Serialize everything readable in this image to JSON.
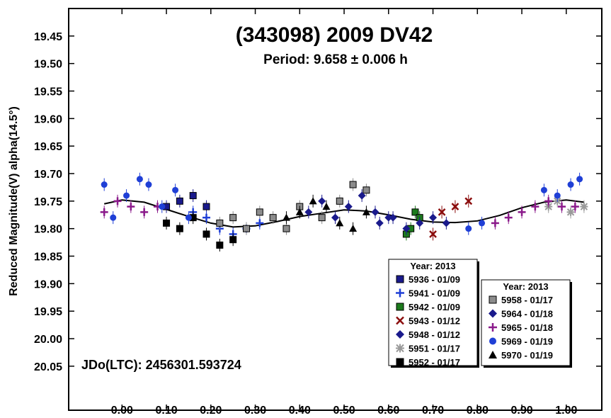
{
  "chart_data": {
    "type": "scatter",
    "title": "(343098) 2009 DV42",
    "subtitle": "Period: 9.658 ± 0.006 h",
    "ylabel": "Reduced Magnitude(V) alpha(14.5°)",
    "xlabel": "",
    "xlim": [
      -0.12,
      1.08
    ],
    "ylim": [
      19.4,
      20.13
    ],
    "y_inverted": true,
    "x_ticks": [
      "0.00",
      "0.10",
      "0.20",
      "0.30",
      "0.40",
      "0.50",
      "0.60",
      "0.70",
      "0.80",
      "0.90",
      "1.00"
    ],
    "y_ticks": [
      "19.45",
      "19.50",
      "19.55",
      "19.60",
      "19.65",
      "19.70",
      "19.75",
      "19.80",
      "19.85",
      "19.90",
      "19.95",
      "20.00",
      "20.05"
    ],
    "annotation": "JDo(LTC): 2456301.593724",
    "grid": false,
    "legend_placement": "bottom-right",
    "legends": [
      {
        "title": "Year: 2013",
        "entries": [
          {
            "label": "5936 - 01/09",
            "marker": "square",
            "color": "#1a1a8c"
          },
          {
            "label": "5941 - 01/09",
            "marker": "plus",
            "color": "#1f3fd6"
          },
          {
            "label": "5942 - 01/09",
            "marker": "square",
            "color": "#1c7a1c"
          },
          {
            "label": "5943 - 01/12",
            "marker": "x",
            "color": "#8b0d0d"
          },
          {
            "label": "5948 - 01/12",
            "marker": "diamond",
            "color": "#1a1a8c"
          },
          {
            "label": "5951 - 01/17",
            "marker": "asterisk",
            "color": "#9a9a9a"
          },
          {
            "label": "5952 - 01/17",
            "marker": "square",
            "color": "#000000"
          }
        ]
      },
      {
        "title": "Year: 2013",
        "entries": [
          {
            "label": "5958 - 01/17",
            "marker": "square",
            "color": "#8c8c8c"
          },
          {
            "label": "5964 - 01/18",
            "marker": "diamond",
            "color": "#1a1a8c"
          },
          {
            "label": "5965 - 01/18",
            "marker": "plus",
            "color": "#8b1a8b"
          },
          {
            "label": "5969 - 01/19",
            "marker": "circle",
            "color": "#1f3fd6"
          },
          {
            "label": "5970 - 01/19",
            "marker": "triangle",
            "color": "#000000"
          }
        ]
      }
    ],
    "fit_curve": {
      "x": [
        -0.04,
        0.0,
        0.05,
        0.1,
        0.15,
        0.2,
        0.25,
        0.3,
        0.35,
        0.4,
        0.45,
        0.5,
        0.55,
        0.6,
        0.65,
        0.7,
        0.75,
        0.8,
        0.85,
        0.9,
        0.95,
        1.0,
        1.04
      ],
      "y": [
        19.755,
        19.748,
        19.752,
        19.765,
        19.778,
        19.79,
        19.797,
        19.795,
        19.787,
        19.778,
        19.772,
        19.766,
        19.768,
        19.775,
        19.783,
        19.788,
        19.789,
        19.786,
        19.776,
        19.762,
        19.752,
        19.748,
        19.752
      ]
    },
    "series": [
      {
        "name": "5936 - 01/09",
        "x": [
          0.1,
          0.13,
          0.16,
          0.19
        ],
        "y": [
          19.76,
          19.75,
          19.74,
          19.76
        ]
      },
      {
        "name": "5941 - 01/09",
        "x": [
          0.16,
          0.19,
          0.22,
          0.25,
          0.28,
          0.31
        ],
        "y": [
          19.77,
          19.78,
          19.8,
          19.81,
          19.8,
          19.79
        ]
      },
      {
        "name": "5942 - 01/09",
        "x": [
          0.64,
          0.65,
          0.66,
          0.67
        ],
        "y": [
          19.81,
          19.8,
          19.77,
          19.78
        ]
      },
      {
        "name": "5943 - 01/12",
        "x": [
          0.7,
          0.72,
          0.75,
          0.78
        ],
        "y": [
          19.81,
          19.77,
          19.76,
          19.75
        ]
      },
      {
        "name": "5948 - 01/12",
        "x": [
          0.58,
          0.61,
          0.64,
          0.67,
          0.7,
          0.73
        ],
        "y": [
          19.79,
          19.78,
          19.8,
          19.79,
          19.78,
          19.79
        ]
      },
      {
        "name": "5951 - 01/17",
        "x": [
          0.96,
          0.98,
          1.01,
          1.04
        ],
        "y": [
          19.76,
          19.75,
          19.77,
          19.76
        ]
      },
      {
        "name": "5952 - 01/17",
        "x": [
          0.1,
          0.13,
          0.16,
          0.19,
          0.22,
          0.25
        ],
        "y": [
          19.79,
          19.8,
          19.78,
          19.81,
          19.83,
          19.82
        ]
      },
      {
        "name": "5958 - 01/17",
        "x": [
          0.22,
          0.25,
          0.28,
          0.31,
          0.34,
          0.37,
          0.4,
          0.45,
          0.49,
          0.52,
          0.55
        ],
        "y": [
          19.79,
          19.78,
          19.8,
          19.77,
          19.78,
          19.8,
          19.76,
          19.78,
          19.75,
          19.72,
          19.73
        ]
      },
      {
        "name": "5964 - 01/18",
        "x": [
          0.42,
          0.45,
          0.48,
          0.51,
          0.54,
          0.57,
          0.6
        ],
        "y": [
          19.77,
          19.75,
          19.78,
          19.76,
          19.74,
          19.77,
          19.78
        ]
      },
      {
        "name": "5965 - 01/18",
        "x": [
          -0.04,
          -0.01,
          0.02,
          0.05,
          0.08,
          0.84,
          0.87,
          0.9,
          0.93,
          0.96,
          0.99,
          1.02
        ],
        "y": [
          19.77,
          19.75,
          19.76,
          19.77,
          19.76,
          19.79,
          19.78,
          19.77,
          19.76,
          19.75,
          19.76,
          19.76
        ]
      },
      {
        "name": "5969 - 01/19",
        "x": [
          -0.04,
          -0.02,
          0.01,
          0.04,
          0.06,
          0.09,
          0.12,
          0.15,
          0.78,
          0.81,
          0.95,
          0.98,
          1.01,
          1.03
        ],
        "y": [
          19.72,
          19.78,
          19.74,
          19.71,
          19.72,
          19.76,
          19.73,
          19.78,
          19.8,
          19.79,
          19.73,
          19.74,
          19.72,
          19.71
        ]
      },
      {
        "name": "5970 - 01/19",
        "x": [
          0.37,
          0.4,
          0.43,
          0.46,
          0.49,
          0.52,
          0.55
        ],
        "y": [
          19.78,
          19.77,
          19.75,
          19.76,
          19.79,
          19.8,
          19.77
        ]
      }
    ]
  }
}
